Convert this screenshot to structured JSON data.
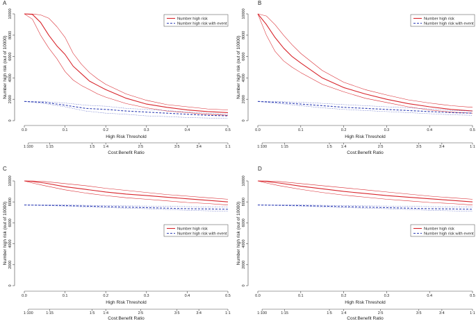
{
  "figure": {
    "panel_letters": [
      "A",
      "B",
      "C",
      "D"
    ]
  },
  "colors": {
    "high_risk": "#d8242b",
    "high_risk_event": "#2f3fb5"
  },
  "chart_data": [
    {
      "panel": "A",
      "type": "line",
      "xlabel": "High Risk Threshold",
      "ylabel": "Number high risk (out of 10000)",
      "x2label": "Cost:Benefit Ratio",
      "xlim": [
        0,
        0.5
      ],
      "ylim": [
        0,
        10000
      ],
      "xticks": [
        "0.0",
        "0.1",
        "0.2",
        "0.3",
        "0.4",
        "0.5"
      ],
      "yticks": [
        "0",
        "2000",
        "4000",
        "6000",
        "8000",
        "10000"
      ],
      "ratio_ticks": [
        {
          "x": 0.0099,
          "label": "1:100"
        },
        {
          "x": 0.0625,
          "label": "1:15"
        },
        {
          "x": 0.1667,
          "label": "1:5"
        },
        {
          "x": 0.2,
          "label": "1:4"
        },
        {
          "x": 0.2857,
          "label": "2:5"
        },
        {
          "x": 0.375,
          "label": "3:5"
        },
        {
          "x": 0.4286,
          "label": "3:4"
        },
        {
          "x": 0.5,
          "label": "1:1"
        }
      ],
      "legend": {
        "position": "top-right",
        "entries": [
          "Number high risk",
          "Number high risk with event"
        ]
      },
      "series": [
        {
          "name": "Number high risk",
          "x": [
            0,
            0.02,
            0.04,
            0.06,
            0.08,
            0.1,
            0.12,
            0.14,
            0.16,
            0.18,
            0.2,
            0.25,
            0.3,
            0.35,
            0.4,
            0.45,
            0.5
          ],
          "y": [
            10000,
            9950,
            9200,
            8000,
            7000,
            6200,
            5100,
            4400,
            3700,
            3300,
            2900,
            2100,
            1550,
            1250,
            1000,
            850,
            750
          ]
        },
        {
          "x": [
            0,
            0.02,
            0.04,
            0.06,
            0.08,
            0.1,
            0.12,
            0.14,
            0.16,
            0.18,
            0.2,
            0.25,
            0.3,
            0.35,
            0.4,
            0.45,
            0.5
          ],
          "y": [
            10000,
            9990,
            9900,
            9600,
            8800,
            7800,
            6300,
            5300,
            4500,
            3900,
            3400,
            2500,
            1900,
            1500,
            1300,
            1100,
            1000
          ]
        },
        {
          "x": [
            0,
            0.02,
            0.04,
            0.06,
            0.08,
            0.1,
            0.12,
            0.14,
            0.16,
            0.18,
            0.2,
            0.25,
            0.3,
            0.35,
            0.4,
            0.45,
            0.5
          ],
          "y": [
            10000,
            9500,
            8000,
            6800,
            5800,
            4600,
            3800,
            3300,
            2900,
            2500,
            2200,
            1600,
            1200,
            900,
            750,
            600,
            500
          ]
        },
        {
          "name": "Number high risk with event",
          "x": [
            0,
            0.05,
            0.1,
            0.15,
            0.2,
            0.25,
            0.3,
            0.35,
            0.4,
            0.45,
            0.5
          ],
          "y": [
            1800,
            1700,
            1450,
            1150,
            1050,
            900,
            800,
            700,
            600,
            500,
            450
          ]
        },
        {
          "x": [
            0,
            0.05,
            0.1,
            0.15,
            0.2,
            0.25,
            0.3,
            0.35,
            0.4,
            0.45,
            0.5
          ],
          "y": [
            1800,
            1780,
            1650,
            1450,
            1350,
            1150,
            1050,
            950,
            800,
            700,
            600
          ]
        },
        {
          "x": [
            0,
            0.05,
            0.1,
            0.15,
            0.2,
            0.25,
            0.3,
            0.35,
            0.4,
            0.45,
            0.5
          ],
          "y": [
            1800,
            1600,
            1300,
            900,
            700,
            600,
            450,
            380,
            300,
            250,
            200
          ]
        }
      ]
    },
    {
      "panel": "B",
      "type": "line",
      "xlabel": "High Risk Threshold",
      "ylabel": "Number high risk (out of 10000)",
      "x2label": "Cost:Benefit Ratio",
      "xlim": [
        0,
        0.5
      ],
      "ylim": [
        0,
        10000
      ],
      "xticks": [
        "0.0",
        "0.1",
        "0.2",
        "0.3",
        "0.4",
        "0.5"
      ],
      "yticks": [
        "0",
        "2000",
        "4000",
        "6000",
        "8000",
        "10000"
      ],
      "ratio_ticks": [
        {
          "x": 0.0099,
          "label": "1:100"
        },
        {
          "x": 0.0625,
          "label": "1:15"
        },
        {
          "x": 0.1667,
          "label": "1:5"
        },
        {
          "x": 0.2,
          "label": "1:4"
        },
        {
          "x": 0.2857,
          "label": "2:5"
        },
        {
          "x": 0.375,
          "label": "3:5"
        },
        {
          "x": 0.4286,
          "label": "3:4"
        },
        {
          "x": 0.5,
          "label": "1:1"
        }
      ],
      "legend": {
        "position": "top-right",
        "entries": [
          "Number high risk",
          "Number high risk with event"
        ]
      },
      "series": [
        {
          "name": "Number high risk",
          "x": [
            0,
            0.02,
            0.04,
            0.06,
            0.08,
            0.1,
            0.15,
            0.2,
            0.25,
            0.3,
            0.35,
            0.4,
            0.45,
            0.5
          ],
          "y": [
            10000,
            9000,
            7800,
            6800,
            6000,
            5400,
            4000,
            3100,
            2500,
            2000,
            1600,
            1300,
            1050,
            900
          ]
        },
        {
          "x": [
            0,
            0.02,
            0.04,
            0.06,
            0.08,
            0.1,
            0.15,
            0.2,
            0.25,
            0.3,
            0.35,
            0.4,
            0.45,
            0.5
          ],
          "y": [
            10000,
            9800,
            9000,
            8000,
            7100,
            6300,
            4700,
            3600,
            2900,
            2400,
            1950,
            1650,
            1400,
            1250
          ]
        },
        {
          "x": [
            0,
            0.02,
            0.04,
            0.06,
            0.08,
            0.1,
            0.15,
            0.2,
            0.25,
            0.3,
            0.35,
            0.4,
            0.45,
            0.5
          ],
          "y": [
            10000,
            8000,
            6500,
            5600,
            5000,
            4500,
            3400,
            2700,
            2100,
            1700,
            1300,
            1000,
            800,
            700
          ]
        },
        {
          "name": "Number high risk with event",
          "x": [
            0,
            0.05,
            0.1,
            0.15,
            0.2,
            0.25,
            0.3,
            0.35,
            0.4,
            0.45,
            0.5
          ],
          "y": [
            1800,
            1700,
            1550,
            1400,
            1250,
            1150,
            1050,
            950,
            850,
            750,
            700
          ]
        },
        {
          "x": [
            0,
            0.05,
            0.1,
            0.15,
            0.2,
            0.25,
            0.3,
            0.35,
            0.4,
            0.45,
            0.5
          ],
          "y": [
            1800,
            1780,
            1720,
            1620,
            1500,
            1400,
            1300,
            1200,
            1100,
            950,
            900
          ]
        },
        {
          "x": [
            0,
            0.05,
            0.1,
            0.15,
            0.2,
            0.25,
            0.3,
            0.35,
            0.4,
            0.45,
            0.5
          ],
          "y": [
            1800,
            1600,
            1400,
            1200,
            1050,
            950,
            850,
            750,
            650,
            550,
            500
          ]
        }
      ]
    },
    {
      "panel": "C",
      "type": "line",
      "xlabel": "High Risk Threshold",
      "ylabel": "Number high risk (out of 10000)",
      "x2label": "Cost:Benefit Ratio",
      "xlim": [
        0,
        0.5
      ],
      "ylim": [
        0,
        10000
      ],
      "xticks": [
        "0.0",
        "0.1",
        "0.2",
        "0.3",
        "0.4",
        "0.5"
      ],
      "yticks": [
        "0",
        "2000",
        "4000",
        "6000",
        "8000",
        "10000"
      ],
      "ratio_ticks": [
        {
          "x": 0.0099,
          "label": "1:100"
        },
        {
          "x": 0.0625,
          "label": "1:15"
        },
        {
          "x": 0.1667,
          "label": "1:5"
        },
        {
          "x": 0.2,
          "label": "1:4"
        },
        {
          "x": 0.2857,
          "label": "2:5"
        },
        {
          "x": 0.375,
          "label": "3:5"
        },
        {
          "x": 0.4286,
          "label": "3:4"
        },
        {
          "x": 0.5,
          "label": "1:1"
        }
      ],
      "legend": {
        "position": "right",
        "entries": [
          "Number high risk",
          "Number high risk with event"
        ]
      },
      "series": [
        {
          "name": "Number high risk",
          "x": [
            0,
            0.02,
            0.05,
            0.1,
            0.15,
            0.2,
            0.25,
            0.3,
            0.35,
            0.4,
            0.45,
            0.5
          ],
          "y": [
            10000,
            9950,
            9800,
            9450,
            9200,
            8950,
            8750,
            8600,
            8450,
            8300,
            8150,
            8000
          ]
        },
        {
          "x": [
            0,
            0.02,
            0.05,
            0.1,
            0.15,
            0.2,
            0.25,
            0.3,
            0.35,
            0.4,
            0.45,
            0.5
          ],
          "y": [
            10000,
            10000,
            9950,
            9750,
            9550,
            9300,
            9100,
            8900,
            8700,
            8550,
            8400,
            8250
          ]
        },
        {
          "x": [
            0,
            0.02,
            0.05,
            0.1,
            0.15,
            0.2,
            0.25,
            0.3,
            0.35,
            0.4,
            0.45,
            0.5
          ],
          "y": [
            10000,
            9800,
            9550,
            9150,
            8850,
            8600,
            8400,
            8250,
            8100,
            7950,
            7850,
            7700
          ]
        },
        {
          "name": "Number high risk with event",
          "x": [
            0,
            0.1,
            0.2,
            0.3,
            0.4,
            0.5
          ],
          "y": [
            7700,
            7650,
            7550,
            7450,
            7350,
            7300
          ]
        },
        {
          "x": [
            0,
            0.1,
            0.2,
            0.3,
            0.4,
            0.5
          ],
          "y": [
            7700,
            7700,
            7650,
            7600,
            7550,
            7500
          ]
        },
        {
          "x": [
            0,
            0.1,
            0.2,
            0.3,
            0.4,
            0.5
          ],
          "y": [
            7700,
            7600,
            7450,
            7350,
            7200,
            7100
          ]
        }
      ]
    },
    {
      "panel": "D",
      "type": "line",
      "xlabel": "High Risk Threshold",
      "ylabel": "Number high risk (out of 10000)",
      "x2label": "Cost:Benefit Ratio",
      "xlim": [
        0,
        0.5
      ],
      "ylim": [
        0,
        10000
      ],
      "xticks": [
        "0.0",
        "0.1",
        "0.2",
        "0.3",
        "0.4",
        "0.5"
      ],
      "yticks": [
        "0",
        "2000",
        "4000",
        "6000",
        "8000",
        "10000"
      ],
      "ratio_ticks": [
        {
          "x": 0.0099,
          "label": "1:100"
        },
        {
          "x": 0.0625,
          "label": "1:15"
        },
        {
          "x": 0.1667,
          "label": "1:5"
        },
        {
          "x": 0.2,
          "label": "1:4"
        },
        {
          "x": 0.2857,
          "label": "2:5"
        },
        {
          "x": 0.375,
          "label": "3:5"
        },
        {
          "x": 0.4286,
          "label": "3:4"
        },
        {
          "x": 0.5,
          "label": "1:1"
        }
      ],
      "legend": {
        "position": "right",
        "entries": [
          "Number high risk",
          "Number high risk with event"
        ]
      },
      "series": [
        {
          "name": "Number high risk",
          "x": [
            0,
            0.02,
            0.05,
            0.1,
            0.15,
            0.2,
            0.25,
            0.3,
            0.35,
            0.4,
            0.45,
            0.5
          ],
          "y": [
            10000,
            9950,
            9800,
            9500,
            9250,
            9000,
            8800,
            8600,
            8450,
            8300,
            8150,
            8000
          ]
        },
        {
          "x": [
            0,
            0.02,
            0.05,
            0.1,
            0.15,
            0.2,
            0.25,
            0.3,
            0.35,
            0.4,
            0.45,
            0.5
          ],
          "y": [
            10000,
            10000,
            9950,
            9750,
            9550,
            9350,
            9150,
            8950,
            8750,
            8550,
            8400,
            8250
          ]
        },
        {
          "x": [
            0,
            0.02,
            0.05,
            0.1,
            0.15,
            0.2,
            0.25,
            0.3,
            0.35,
            0.4,
            0.45,
            0.5
          ],
          "y": [
            10000,
            9800,
            9550,
            9200,
            8900,
            8650,
            8450,
            8250,
            8100,
            7950,
            7850,
            7700
          ]
        },
        {
          "name": "Number high risk with event",
          "x": [
            0,
            0.1,
            0.2,
            0.3,
            0.4,
            0.5
          ],
          "y": [
            7700,
            7650,
            7550,
            7450,
            7350,
            7300
          ]
        },
        {
          "x": [
            0,
            0.1,
            0.2,
            0.3,
            0.4,
            0.5
          ],
          "y": [
            7700,
            7700,
            7650,
            7600,
            7550,
            7500
          ]
        },
        {
          "x": [
            0,
            0.1,
            0.2,
            0.3,
            0.4,
            0.5
          ],
          "y": [
            7700,
            7600,
            7450,
            7350,
            7200,
            7100
          ]
        }
      ]
    }
  ]
}
